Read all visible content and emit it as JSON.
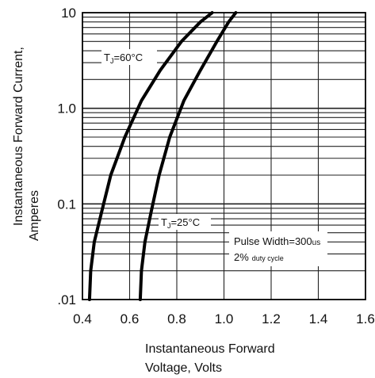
{
  "chart_data": {
    "type": "line",
    "x_axis": {
      "title_line1": "Instantaneous Forward",
      "title_line2": "Voltage, Volts",
      "range": [
        0.4,
        1.6
      ],
      "ticks": [
        0.4,
        0.6,
        0.8,
        1.0,
        1.2,
        1.4,
        1.6
      ],
      "tick_labels": [
        "0.4",
        "0.6",
        "0.8",
        "1.0",
        "1.2",
        "1.4",
        "1.6"
      ]
    },
    "y_axis": {
      "title_line1": "Instantaneous Forward Current,",
      "title_line2": "Amperes",
      "scale": "log",
      "range": [
        0.01,
        10
      ],
      "ticks": [
        0.01,
        0.1,
        1,
        10
      ],
      "tick_labels": [
        ".01",
        "0.1",
        "1.0",
        "10"
      ]
    },
    "grid": true,
    "series": [
      {
        "name": "TJ=60°C",
        "label_main": "T",
        "label_sub": "J",
        "label_rest": "=60°C",
        "x": [
          0.43,
          0.435,
          0.45,
          0.48,
          0.52,
          0.58,
          0.65,
          0.73,
          0.82,
          0.9,
          0.95
        ],
        "y": [
          0.01,
          0.02,
          0.04,
          0.08,
          0.2,
          0.5,
          1.2,
          2.5,
          5.0,
          8.0,
          10
        ]
      },
      {
        "name": "TJ=25°C",
        "label_main": "T",
        "label_sub": "J",
        "label_rest": "=25°C",
        "x": [
          0.645,
          0.65,
          0.665,
          0.69,
          0.725,
          0.77,
          0.83,
          0.9,
          0.97,
          1.02,
          1.05
        ],
        "y": [
          0.01,
          0.02,
          0.04,
          0.08,
          0.2,
          0.5,
          1.2,
          2.5,
          5.0,
          8.0,
          10
        ]
      }
    ],
    "annotation": {
      "line1_main": "Pulse Width=300",
      "line1_unit": "us",
      "line2_main": "2%",
      "line2_rest": "duty cycle"
    }
  }
}
